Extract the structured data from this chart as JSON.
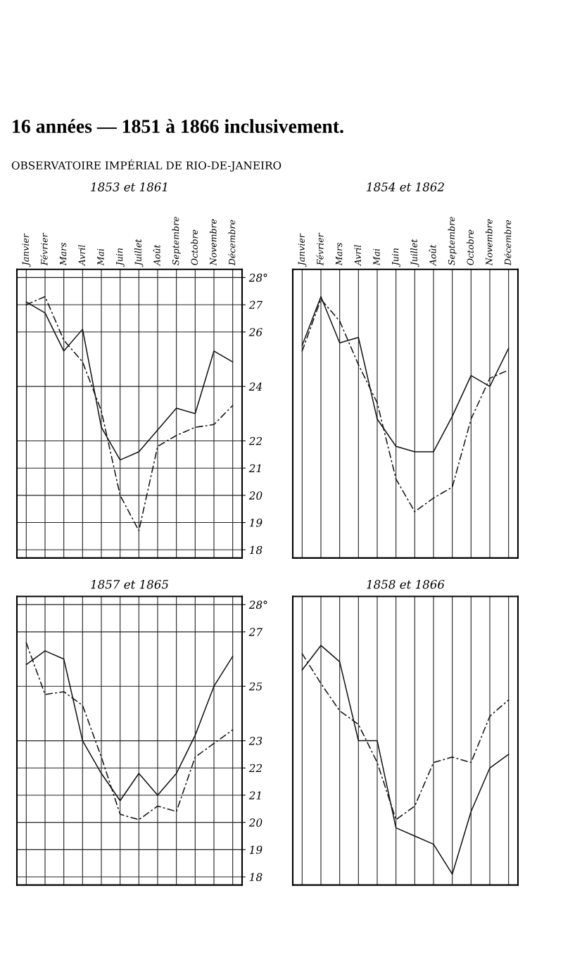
{
  "chart_data": [
    {
      "type": "line",
      "title": "1853 et 1861",
      "annotations": [
        "16 années — 1851 à 1866 inclusivement.",
        "OBSERVATOIRE IMPÉRIAL DE RIO-DE-JANEIRO"
      ],
      "categories": [
        "Janvier",
        "Février",
        "Mars",
        "Avril",
        "Mai",
        "Juin",
        "Juillet",
        "Août",
        "Septembre",
        "Octobre",
        "Novembre",
        "Décembre"
      ],
      "ylim": [
        17.7,
        28.3
      ],
      "yticks": [
        {
          "value": 28,
          "label": "28°"
        },
        27,
        26,
        24,
        22,
        21,
        20,
        19,
        18
      ],
      "grid": true,
      "marker": "none",
      "series": [
        {
          "color": "#111111",
          "line_style": "solid",
          "values": [
            27.1,
            26.7,
            25.3,
            26.1,
            22.5,
            21.3,
            21.6,
            22.4,
            23.2,
            23.0,
            25.3,
            24.9
          ]
        },
        {
          "color": "#111111",
          "line_style": "dashed",
          "values": [
            27.0,
            27.3,
            25.7,
            24.9,
            23.1,
            20.0,
            18.7,
            21.8,
            22.2,
            22.5,
            22.6,
            23.3
          ]
        }
      ]
    },
    {
      "type": "line",
      "title": "1854 et 1862",
      "categories": [
        "Janvier",
        "Février",
        "Mars",
        "Avril",
        "Mai",
        "Juin",
        "Juillet",
        "Août",
        "Septembre",
        "Octobre",
        "Novembre",
        "Décembre"
      ],
      "ylim": [
        17.7,
        28.3
      ],
      "tick_labels": "x",
      "grid": true,
      "marker": "none",
      "series": [
        {
          "color": "#111111",
          "line_style": "solid",
          "values": [
            25.5,
            27.3,
            25.6,
            25.8,
            22.8,
            21.8,
            21.6,
            21.6,
            22.9,
            24.4,
            24.0,
            25.4
          ]
        },
        {
          "color": "#111111",
          "line_style": "dashed",
          "values": [
            25.3,
            27.2,
            26.4,
            24.8,
            23.4,
            20.6,
            19.4,
            19.9,
            20.3,
            22.8,
            24.3,
            24.6
          ]
        }
      ]
    },
    {
      "type": "line",
      "title": "1857 et 1865",
      "categories": [
        null,
        null,
        null,
        null,
        null,
        null,
        null,
        null,
        null,
        null,
        null,
        null
      ],
      "ylim": [
        17.7,
        28.3
      ],
      "yticks": [
        {
          "value": 28,
          "label": "28°"
        },
        27,
        25,
        23,
        22,
        21,
        20,
        19,
        18
      ],
      "tick_labels": "y",
      "grid": true,
      "marker": "none",
      "series": [
        {
          "color": "#111111",
          "line_style": "solid",
          "values": [
            25.8,
            26.3,
            26.0,
            23.0,
            21.8,
            20.8,
            21.8,
            21.0,
            21.8,
            23.2,
            25.0,
            26.1
          ]
        },
        {
          "color": "#111111",
          "line_style": "dashed",
          "values": [
            26.6,
            24.7,
            24.8,
            24.3,
            22.4,
            20.3,
            20.1,
            20.6,
            20.4,
            22.4,
            22.9,
            23.4
          ]
        }
      ]
    },
    {
      "type": "line",
      "title": "1858 et 1866",
      "categories": [
        null,
        null,
        null,
        null,
        null,
        null,
        null,
        null,
        null,
        null,
        null,
        null
      ],
      "ylim": [
        17.7,
        28.3
      ],
      "tick_labels": false,
      "grid": true,
      "marker": "none",
      "series": [
        {
          "color": "#111111",
          "line_style": "solid",
          "values": [
            25.6,
            26.5,
            25.9,
            23.0,
            23.0,
            19.8,
            19.5,
            19.2,
            18.1,
            20.4,
            22.0,
            22.5
          ]
        },
        {
          "color": "#111111",
          "line_style": "dashed",
          "values": [
            26.2,
            25.1,
            24.1,
            23.6,
            22.2,
            20.1,
            20.6,
            22.2,
            22.4,
            22.2,
            23.9,
            24.5
          ]
        }
      ]
    }
  ]
}
